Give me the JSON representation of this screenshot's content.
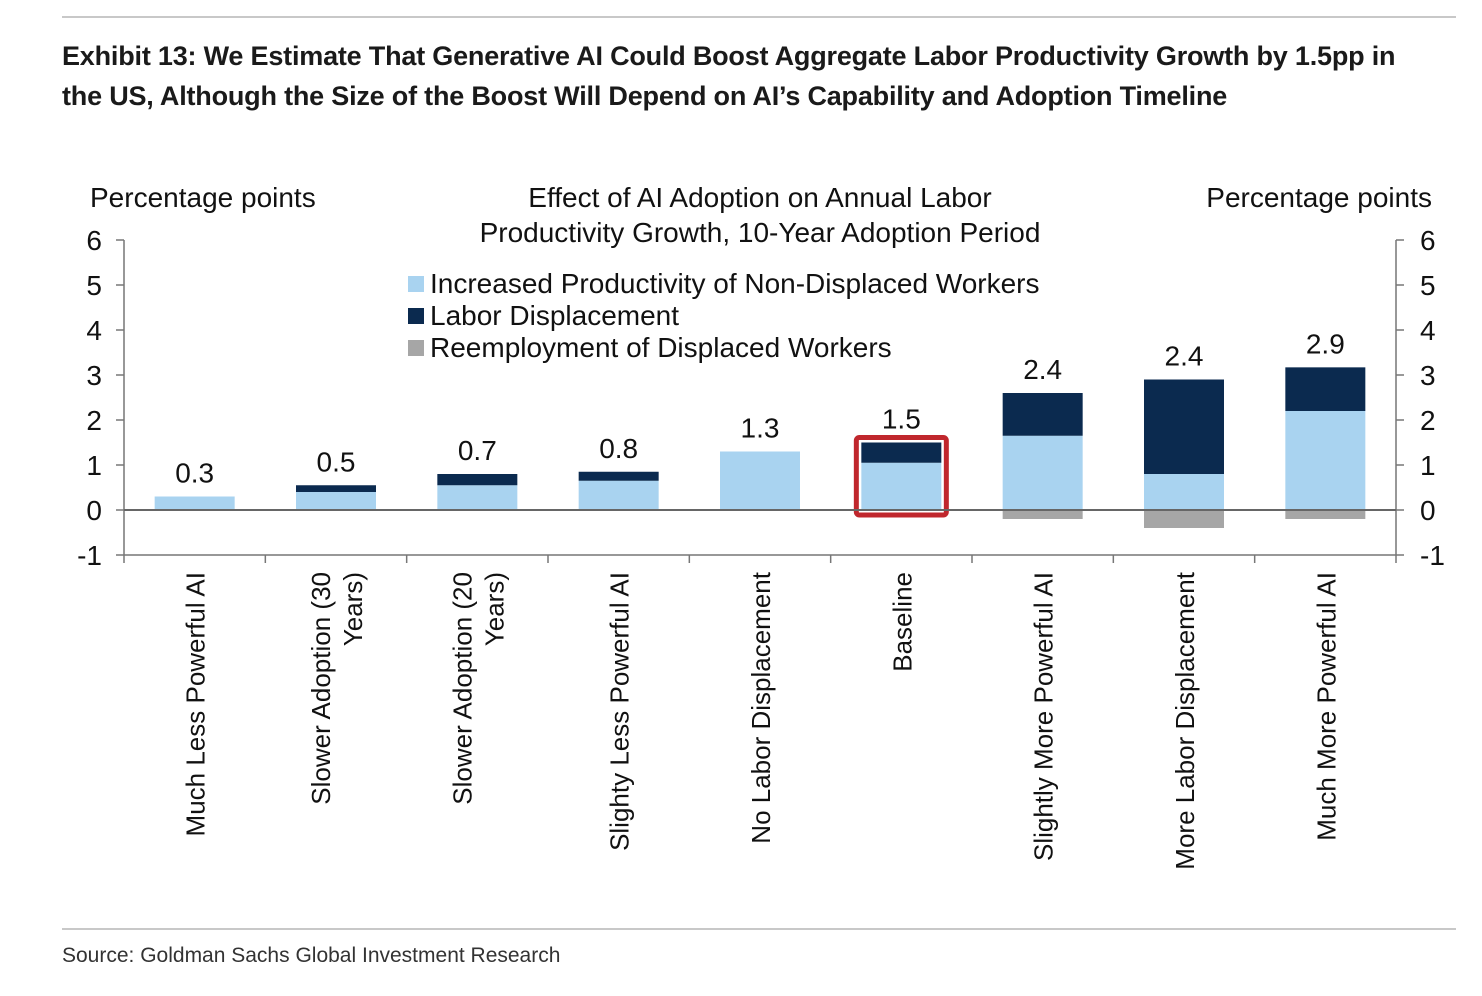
{
  "title": "Exhibit 13: We Estimate That Generative AI Could Boost Aggregate Labor Productivity Growth by 1.5pp in the US, Although the Size of the Boost Will Depend on AI’s Capability and Adoption Timeline",
  "source": "Source: Goldman Sachs Global Investment Research",
  "chart_data": {
    "type": "bar",
    "stacked": true,
    "title": "Effect of AI Adoption on Annual Labor Productivity Growth, 10-Year Adoption Period",
    "title_lines": [
      "Effect of AI Adoption on Annual Labor",
      "Productivity Growth, 10-Year Adoption Period"
    ],
    "ylabel_left": "Percentage points",
    "ylabel_right": "Percentage points",
    "ylim": [
      -1,
      6
    ],
    "yticks": [
      -1,
      0,
      1,
      2,
      3,
      4,
      5,
      6
    ],
    "legend_position": "top-center",
    "highlighted_category": "Baseline",
    "highlight_color": "#c0272d",
    "categories": [
      "Much Less Powerful AI",
      "Slower Adoption (30 Years)",
      "Slower Adoption (20 Years)",
      "Slighty Less Powerful AI",
      "No Labor Displacement",
      "Baseline",
      "Slightly More Powerful AI",
      "More Labor Displacement",
      "Much More Powerful AI"
    ],
    "category_lines": [
      [
        "Much Less Powerful AI"
      ],
      [
        "Slower Adoption (30",
        "Years)"
      ],
      [
        "Slower Adoption (20",
        "Years)"
      ],
      [
        "Slighty Less Powerful AI"
      ],
      [
        "No Labor Displacement"
      ],
      [
        "Baseline"
      ],
      [
        "Slightly More Powerful AI"
      ],
      [
        "More Labor Displacement"
      ],
      [
        "Much More Powerful AI"
      ]
    ],
    "series": [
      {
        "name": "Increased Productivity of Non-Displaced Workers",
        "color": "#a9d3f0",
        "values": [
          0.3,
          0.4,
          0.55,
          0.65,
          1.3,
          1.05,
          1.65,
          0.8,
          2.2
        ]
      },
      {
        "name": "Labor Displacement",
        "color": "#0b2a4f",
        "values": [
          0.0,
          0.15,
          0.25,
          0.2,
          0.0,
          0.45,
          0.95,
          2.1,
          0.97
        ]
      },
      {
        "name": "Reemployment of Displaced Workers",
        "color": "#a6a6a6",
        "values": [
          0.0,
          0.0,
          0.0,
          0.0,
          0.0,
          0.0,
          -0.2,
          -0.4,
          -0.2
        ]
      }
    ],
    "totals": [
      "0.3",
      "0.5",
      "0.7",
      "0.8",
      "1.3",
      "1.5",
      "2.4",
      "2.4",
      "2.9"
    ]
  }
}
